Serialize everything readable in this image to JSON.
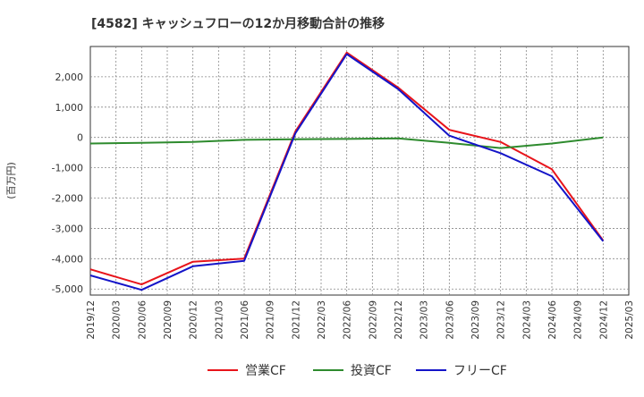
{
  "chart_data": {
    "type": "line",
    "title": "[4582]  キャッシュフローの12か月移動合計の推移",
    "ylabel": "(百万円)",
    "xlabel": "",
    "ylim": [
      -5200,
      3000
    ],
    "yticks": [
      -5000,
      -4000,
      -3000,
      -2000,
      -1000,
      0,
      1000,
      2000
    ],
    "ytick_labels": [
      "-5,000",
      "-4,000",
      "-3,000",
      "-2,000",
      "-1,000",
      "0",
      "1,000",
      "2,000"
    ],
    "categories": [
      "2019/12",
      "2020/03",
      "2020/06",
      "2020/09",
      "2020/12",
      "2021/03",
      "2021/06",
      "2021/09",
      "2021/12",
      "2022/03",
      "2022/06",
      "2022/09",
      "2022/12",
      "2023/03",
      "2023/06",
      "2023/09",
      "2023/12",
      "2024/03",
      "2024/06",
      "2024/09",
      "2024/12",
      "2025/03"
    ],
    "grid": true,
    "legend_position": "bottom-center",
    "series": [
      {
        "name": "営業CF",
        "color": "#e8141b",
        "values": [
          -4350,
          null,
          -4850,
          null,
          -4100,
          null,
          -4000,
          null,
          200,
          null,
          2800,
          null,
          1650,
          null,
          250,
          null,
          -150,
          null,
          -1050,
          null,
          -3400,
          null
        ]
      },
      {
        "name": "投資CF",
        "color": "#2e8b2e",
        "values": [
          -200,
          null,
          -180,
          null,
          -150,
          null,
          -80,
          null,
          -60,
          null,
          -50,
          null,
          -30,
          null,
          -180,
          null,
          -350,
          null,
          -200,
          null,
          0,
          null
        ]
      },
      {
        "name": "フリーCF",
        "color": "#1414c8",
        "values": [
          -4550,
          null,
          -5030,
          null,
          -4250,
          null,
          -4070,
          null,
          140,
          null,
          2750,
          null,
          1600,
          null,
          60,
          null,
          -520,
          null,
          -1280,
          null,
          -3420,
          null
        ]
      }
    ]
  }
}
